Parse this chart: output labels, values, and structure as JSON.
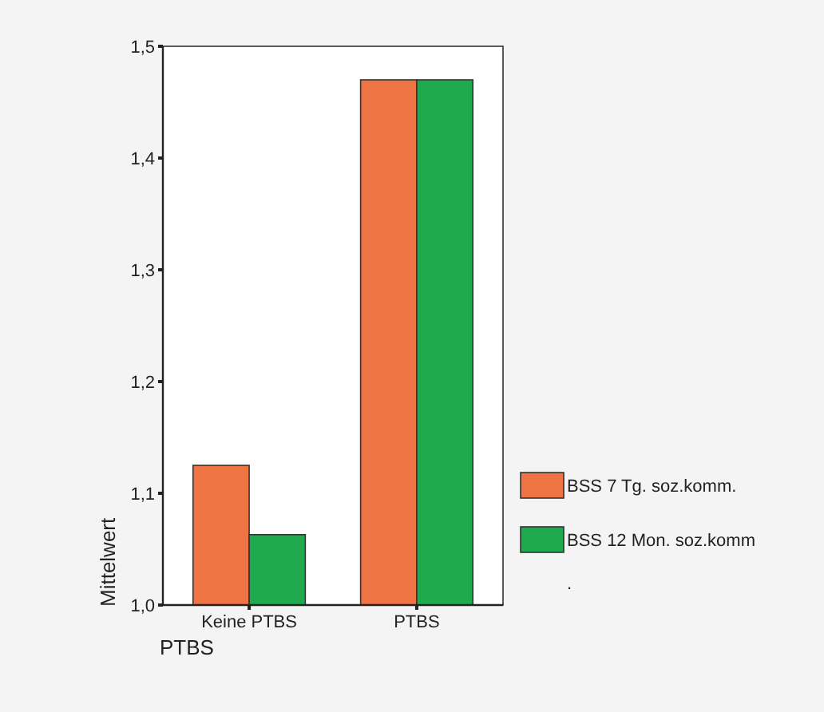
{
  "chart_data": {
    "type": "bar",
    "xlabel": "PTBS",
    "ylabel": "Mittelwert",
    "categories": [
      "Keine PTBS",
      "PTBS"
    ],
    "series": [
      {
        "name": "BSS 7 Tg. soz.komm.",
        "color": "#ee7444",
        "values": [
          1.125,
          1.47
        ]
      },
      {
        "name": "BSS 12 Mon. soz.komm",
        "color": "#1faa50",
        "values": [
          1.063,
          1.47
        ]
      }
    ],
    "ylim": [
      1.0,
      1.5
    ],
    "yticks": [
      {
        "value": 1.0,
        "label": "1,0"
      },
      {
        "value": 1.1,
        "label": "1,1"
      },
      {
        "value": 1.2,
        "label": "1,2"
      },
      {
        "value": 1.3,
        "label": "1,3"
      },
      {
        "value": 1.4,
        "label": "1,4"
      },
      {
        "value": 1.5,
        "label": "1,5"
      }
    ],
    "legend": "right",
    "grid": false,
    "annotations": [
      "."
    ]
  }
}
